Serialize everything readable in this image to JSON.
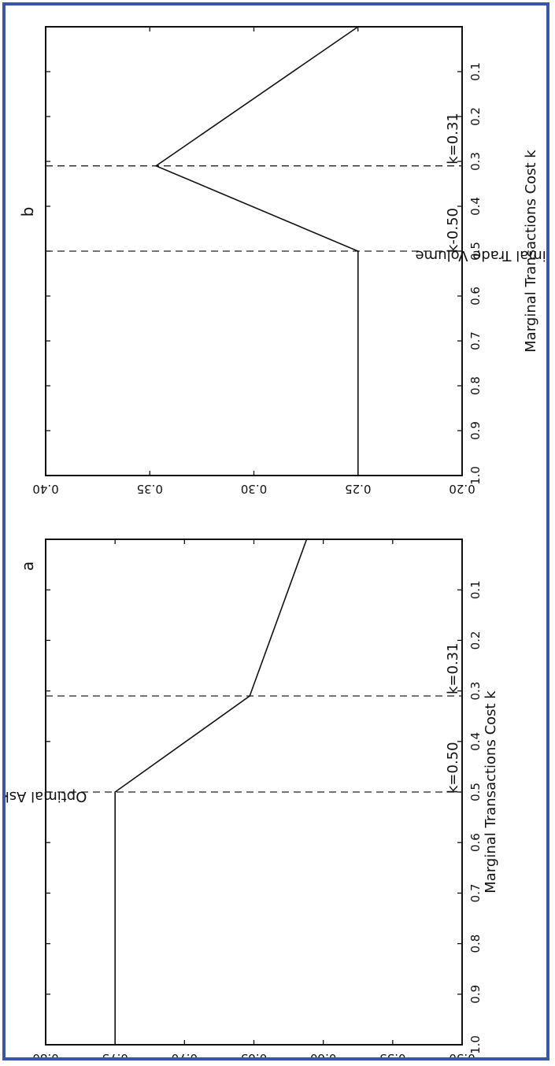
{
  "chart_data": [
    {
      "type": "line",
      "panel_label": "a",
      "xlabel": "Marginal Transactions Cost k",
      "ylabel": "Optimal Ask Price",
      "xlim": [
        0.0,
        1.0
      ],
      "ylim": [
        0.5,
        0.8
      ],
      "x_ticks": [
        0.1,
        0.2,
        0.3,
        0.4,
        0.5,
        0.6,
        0.7,
        0.8,
        0.9,
        1.0
      ],
      "x_tick_labels": [
        "0.1",
        "0.2",
        "0.3",
        "0.4",
        "0.5",
        "0.6",
        "0.7",
        "0.8",
        "0.9",
        "1.0"
      ],
      "y_ticks": [
        0.5,
        0.55,
        0.6,
        0.65,
        0.7,
        0.75,
        0.8
      ],
      "y_tick_labels": [
        "0.50",
        "0.55",
        "0.60",
        "0.65",
        "0.70",
        "0.75",
        "0.80"
      ],
      "x": [
        0.0,
        0.31,
        0.5,
        1.0
      ],
      "y": [
        0.612,
        0.653,
        0.75,
        0.75
      ],
      "vlines": [
        0.31,
        0.5
      ],
      "annotation_left": "k=0.31",
      "annotation_right": "k=0.50",
      "rotation": "rotated 90 degrees clockwise"
    },
    {
      "type": "line",
      "panel_label": "b",
      "xlabel": "Marginal Transactions Cost k",
      "ylabel": "Optimal Trade Volume",
      "xlim": [
        0.0,
        1.0
      ],
      "ylim": [
        0.2,
        0.4
      ],
      "x_ticks": [
        0.1,
        0.2,
        0.3,
        0.4,
        0.5,
        0.6,
        0.7,
        0.8,
        0.9,
        1.0
      ],
      "x_tick_labels": [
        "0.1",
        "0.2",
        "0.3",
        "0.4",
        "0.5",
        "0.6",
        "0.7",
        "0.8",
        "0.9",
        "1.0"
      ],
      "y_ticks": [
        0.2,
        0.25,
        0.3,
        0.35,
        0.4
      ],
      "y_tick_labels": [
        "0.20",
        "0.25",
        "0.30",
        "0.35",
        "0.40"
      ],
      "x": [
        0.0,
        0.31,
        0.5,
        1.0
      ],
      "y": [
        0.25,
        0.347,
        0.25,
        0.25
      ],
      "vlines": [
        0.31,
        0.5
      ],
      "annotation_left": "k=0.31",
      "annotation_right": "k-0.50",
      "rotation": "rotated 90 degrees clockwise"
    }
  ]
}
